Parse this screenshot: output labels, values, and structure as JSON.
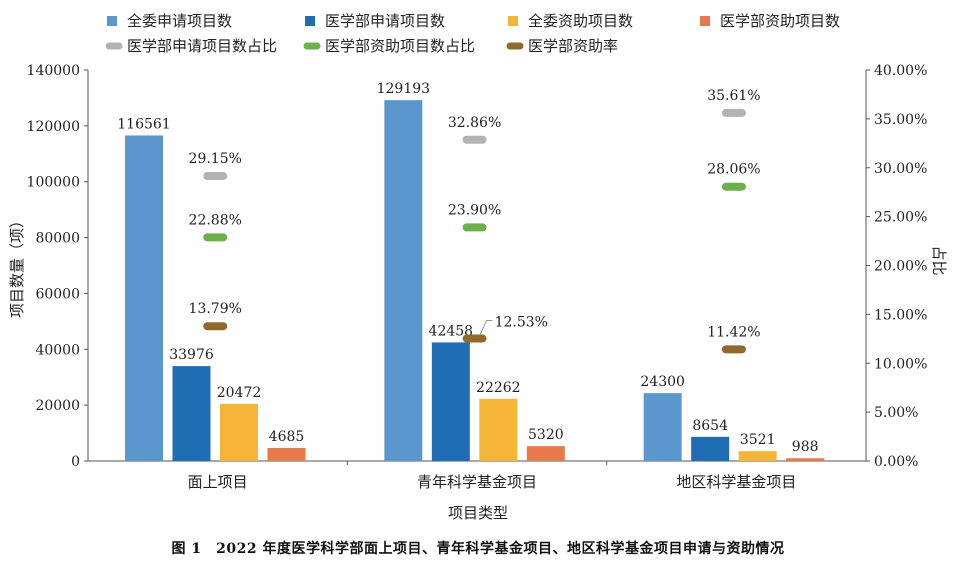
{
  "chart_data": {
    "type": "bar",
    "categories": [
      "面上项目",
      "青年科学基金项目",
      "地区科学基金项目"
    ],
    "xlabel": "项目类型",
    "ylabel": "项目数量（项）",
    "y2label": "占比",
    "ylim": [
      0,
      140000
    ],
    "y2lim": [
      0,
      40
    ],
    "yticks": [
      "0",
      "20000",
      "40000",
      "60000",
      "80000",
      "100000",
      "120000",
      "140000"
    ],
    "y2ticks": [
      "0.00%",
      "5.00%",
      "10.00%",
      "15.00%",
      "20.00%",
      "25.00%",
      "30.00%",
      "35.00%",
      "40.00%"
    ],
    "grid": false,
    "legend_position": "top",
    "series": [
      {
        "name": "全委申请项目数",
        "kind": "bar",
        "axis": "left",
        "color": "#5b97cc",
        "values": [
          116561,
          129193,
          24300
        ],
        "labels": [
          "116561",
          "129193",
          "24300"
        ]
      },
      {
        "name": "医学部申请项目数",
        "kind": "bar",
        "axis": "left",
        "color": "#1f6db3",
        "values": [
          33976,
          42458,
          8654
        ],
        "labels": [
          "33976",
          "42458",
          "8654"
        ]
      },
      {
        "name": "全委资助项目数",
        "kind": "bar",
        "axis": "left",
        "color": "#f5b537",
        "values": [
          20472,
          22262,
          3521
        ],
        "labels": [
          "20472",
          "22262",
          "3521"
        ]
      },
      {
        "name": "医学部资助项目数",
        "kind": "bar",
        "axis": "left",
        "color": "#e8794a",
        "values": [
          4685,
          5320,
          988
        ],
        "labels": [
          "4685",
          "5320",
          "988"
        ]
      },
      {
        "name": "医学部申请项目数占比",
        "kind": "marker",
        "axis": "right",
        "color": "#b3b3b3",
        "values": [
          29.15,
          32.86,
          35.61
        ],
        "labels": [
          "29.15%",
          "32.86%",
          "35.61%"
        ]
      },
      {
        "name": "医学部资助项目数占比",
        "kind": "marker",
        "axis": "right",
        "color": "#6bb04a",
        "values": [
          22.88,
          23.9,
          28.06
        ],
        "labels": [
          "22.88%",
          "23.90%",
          "28.06%"
        ]
      },
      {
        "name": "医学部资助率",
        "kind": "marker",
        "axis": "right",
        "color": "#8f6a2c",
        "values": [
          13.79,
          12.53,
          11.42
        ],
        "labels": [
          "13.79%",
          "12.53%",
          "11.42%"
        ]
      }
    ]
  },
  "caption": "图 1　2022 年度医学科学部面上项目、青年科学基金项目、地区科学基金项目申请与资助情况"
}
